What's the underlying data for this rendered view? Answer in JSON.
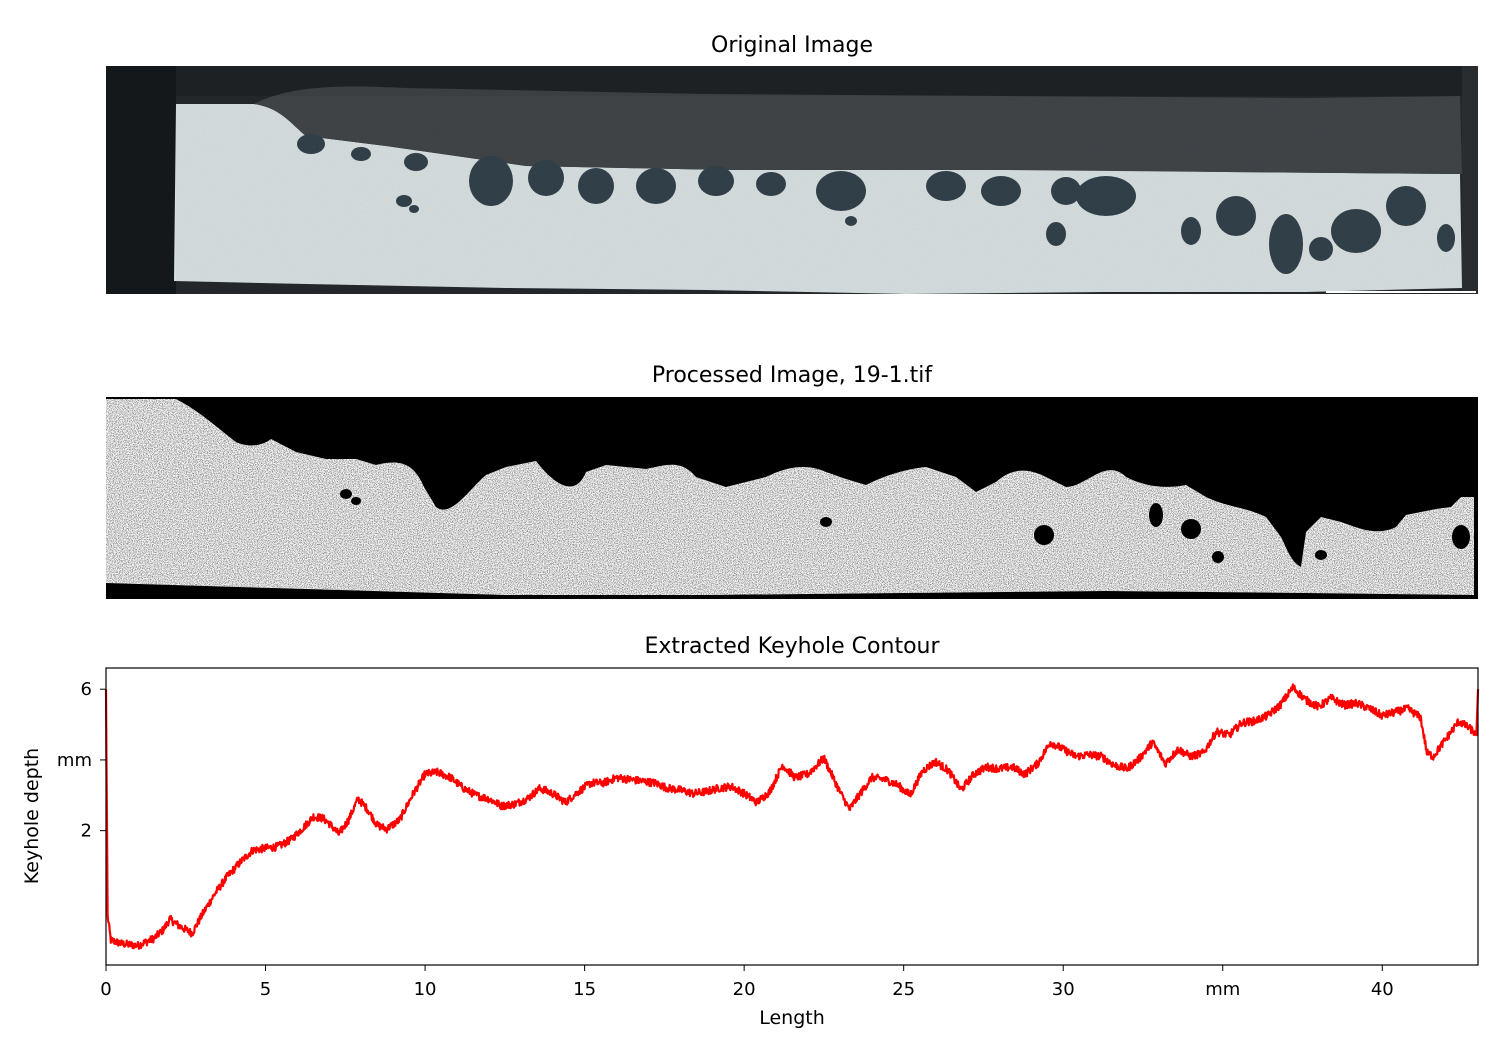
{
  "panels": {
    "original_title": "Original Image",
    "processed_title": "Processed Image, 19-1.tif",
    "contour_title": "Extracted Keyhole Contour"
  },
  "chart_data": {
    "type": "line",
    "title": "Extracted Keyhole Contour",
    "xlabel": "Length",
    "ylabel": "Keyhole depth",
    "xlim": [
      0,
      43
    ],
    "ylim": [
      -1.8,
      6.6
    ],
    "x_ticks": [
      {
        "value": 0,
        "label": "0"
      },
      {
        "value": 5,
        "label": "5"
      },
      {
        "value": 10,
        "label": "10"
      },
      {
        "value": 15,
        "label": "15"
      },
      {
        "value": 20,
        "label": "20"
      },
      {
        "value": 25,
        "label": "25"
      },
      {
        "value": 30,
        "label": "30"
      },
      {
        "value": 35,
        "label": "mm"
      },
      {
        "value": 40,
        "label": "40"
      }
    ],
    "y_ticks": [
      {
        "value": 6,
        "label": "6"
      },
      {
        "value": 4,
        "label": "mm"
      },
      {
        "value": 2,
        "label": "2"
      }
    ],
    "grid": false,
    "series": [
      {
        "color": "#ff0000",
        "x": [
          0,
          0.05,
          0.15,
          0.5,
          1.0,
          1.5,
          1.8,
          2.0,
          2.3,
          2.7,
          3.0,
          3.4,
          3.8,
          4.2,
          4.6,
          5.0,
          5.4,
          5.8,
          6.2,
          6.5,
          6.8,
          7.0,
          7.3,
          7.6,
          7.9,
          8.2,
          8.5,
          8.8,
          9.2,
          9.6,
          10.0,
          10.4,
          10.8,
          11.2,
          11.6,
          12.0,
          12.4,
          12.8,
          13.2,
          13.6,
          14.0,
          14.4,
          14.8,
          15.2,
          15.6,
          16.0,
          16.4,
          16.8,
          17.2,
          17.6,
          18.0,
          18.4,
          18.8,
          19.2,
          19.6,
          20.0,
          20.4,
          20.8,
          21.2,
          21.6,
          22.0,
          22.5,
          23.0,
          23.3,
          23.6,
          24.0,
          24.4,
          24.8,
          25.2,
          25.6,
          26.0,
          26.4,
          26.8,
          27.2,
          27.6,
          28.0,
          28.4,
          28.8,
          29.2,
          29.6,
          30.0,
          30.4,
          30.8,
          31.2,
          31.6,
          32.0,
          32.4,
          32.8,
          33.2,
          33.6,
          34.0,
          34.4,
          34.8,
          35.2,
          35.6,
          36.0,
          36.4,
          36.8,
          37.2,
          37.6,
          38.0,
          38.4,
          38.8,
          39.2,
          39.6,
          40.0,
          40.4,
          40.8,
          41.2,
          41.4,
          41.6,
          42.0,
          42.4,
          42.8,
          42.95,
          43.0
        ],
        "y": [
          6.0,
          -0.4,
          -1.1,
          -1.2,
          -1.25,
          -1.05,
          -0.8,
          -0.5,
          -0.7,
          -0.9,
          -0.4,
          0.2,
          0.7,
          1.1,
          1.45,
          1.5,
          1.55,
          1.75,
          2.1,
          2.4,
          2.35,
          2.2,
          1.9,
          2.3,
          2.9,
          2.6,
          2.15,
          2.05,
          2.3,
          3.0,
          3.6,
          3.65,
          3.5,
          3.2,
          3.0,
          2.9,
          2.7,
          2.75,
          2.9,
          3.2,
          3.05,
          2.8,
          3.1,
          3.35,
          3.35,
          3.5,
          3.45,
          3.4,
          3.35,
          3.2,
          3.15,
          3.05,
          3.1,
          3.2,
          3.25,
          3.05,
          2.8,
          3.1,
          3.85,
          3.5,
          3.6,
          4.05,
          3.1,
          2.6,
          3.0,
          3.5,
          3.45,
          3.3,
          3.0,
          3.7,
          3.95,
          3.7,
          3.15,
          3.6,
          3.8,
          3.75,
          3.8,
          3.6,
          3.9,
          4.5,
          4.3,
          4.1,
          4.15,
          4.1,
          3.85,
          3.75,
          4.05,
          4.5,
          3.9,
          4.3,
          4.1,
          4.2,
          4.8,
          4.7,
          5.05,
          5.1,
          5.25,
          5.55,
          6.05,
          5.7,
          5.5,
          5.75,
          5.55,
          5.6,
          5.45,
          5.25,
          5.35,
          5.45,
          5.2,
          4.2,
          4.1,
          4.6,
          5.1,
          4.85,
          4.7,
          6.0
        ]
      }
    ]
  }
}
